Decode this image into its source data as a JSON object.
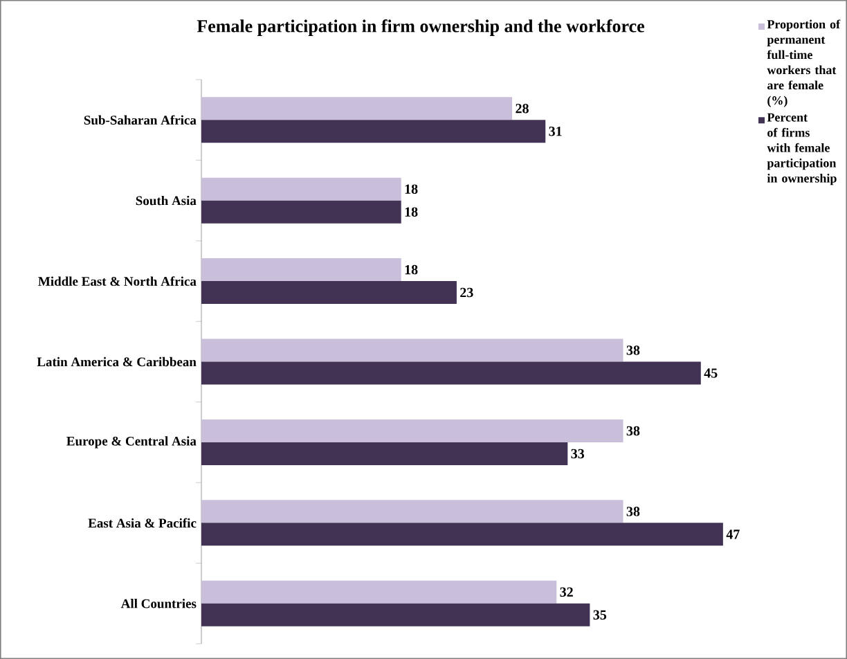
{
  "chart_data": {
    "type": "bar",
    "orientation": "horizontal",
    "title": "Female participation in firm ownership and the workforce",
    "categories": [
      "Sub-Saharan Africa",
      "South Asia",
      "Middle East & North Africa",
      "Latin America & Caribbean",
      "Europe & Central Asia",
      "East Asia & Pacific",
      "All Countries"
    ],
    "series": [
      {
        "name": "Proportion of permanent full-time workers that are female (%)",
        "color": "#c9bfdb",
        "values": [
          28,
          18,
          18,
          38,
          38,
          38,
          32
        ]
      },
      {
        "name": "Percent of firms with female participation in ownership",
        "color": "#423354",
        "values": [
          31,
          18,
          23,
          45,
          33,
          47,
          35
        ]
      }
    ],
    "data_labels": true,
    "legend": "top right"
  }
}
